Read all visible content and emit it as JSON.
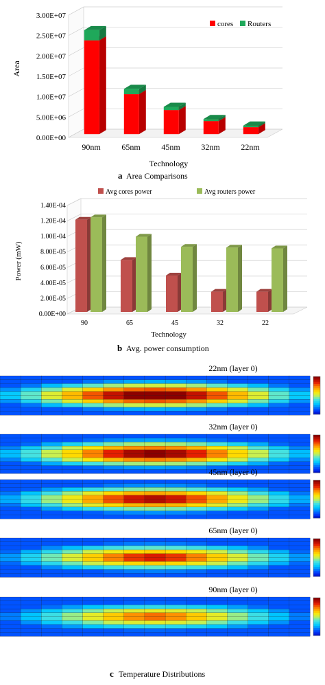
{
  "colors": {
    "cores_area": "#ff0000",
    "routers_area": "#1fa85a",
    "cores_power": "#c0504d",
    "routers_power": "#9bbb59",
    "heat_low": "#1a3cff",
    "heat_high": "#8b0000"
  },
  "chart_data": [
    {
      "type": "bar",
      "stacked": true,
      "caption_letter": "a",
      "caption_text": "Area Comparisons",
      "categories": [
        "90nm",
        "65nm",
        "45nm",
        "32nm",
        "22nm"
      ],
      "series": [
        {
          "name": "cores",
          "values": [
            23000000,
            9800000,
            5900000,
            3200000,
            1700000
          ]
        },
        {
          "name": "Routers",
          "values": [
            2500000,
            1300000,
            800000,
            500000,
            400000
          ]
        }
      ],
      "xlabel": "Technology",
      "ylabel": "Area",
      "ylim": [
        0,
        30000000
      ],
      "yticks": [
        "0.00E+00",
        "5.00E+06",
        "1.00E+07",
        "1.50E+07",
        "2.00E+07",
        "2.50E+07",
        "3.00E+07"
      ],
      "grid": true,
      "legend": "top-right"
    },
    {
      "type": "bar",
      "caption_letter": "b",
      "caption_text": "Avg. power consumption",
      "categories": [
        "90",
        "65",
        "45",
        "32",
        "22"
      ],
      "series": [
        {
          "name": "Avg cores power",
          "values": [
            0.000119,
            6.7e-05,
            4.7e-05,
            2.6e-05,
            2.6e-05
          ]
        },
        {
          "name": "Avg routers power",
          "values": [
            0.000122,
            9.7e-05,
            8.4e-05,
            8.3e-05,
            8.2e-05
          ]
        }
      ],
      "xlabel": "Technology",
      "ylabel": "Power (mW)",
      "ylim": [
        0,
        0.00014
      ],
      "yticks": [
        "0.00E+00",
        "2.00E-05",
        "4.00E-05",
        "6.00E-05",
        "8.00E-05",
        "1.00E-04",
        "1.20E-04",
        "1.40E-04"
      ],
      "grid": true,
      "legend": "top"
    },
    {
      "type": "heatmap",
      "caption_letter": "c",
      "caption_text": "Temperature Distributions",
      "maps": [
        {
          "label": "22nm (layer 0)",
          "intensity": 1.0
        },
        {
          "label": "32nm (layer 0)",
          "intensity": 0.85
        },
        {
          "label": "45nm (layer 0)",
          "intensity": 0.7
        },
        {
          "label": "65nm (layer 0)",
          "intensity": 0.55
        },
        {
          "label": "90nm (layer 0)",
          "intensity": 0.3
        }
      ]
    }
  ]
}
